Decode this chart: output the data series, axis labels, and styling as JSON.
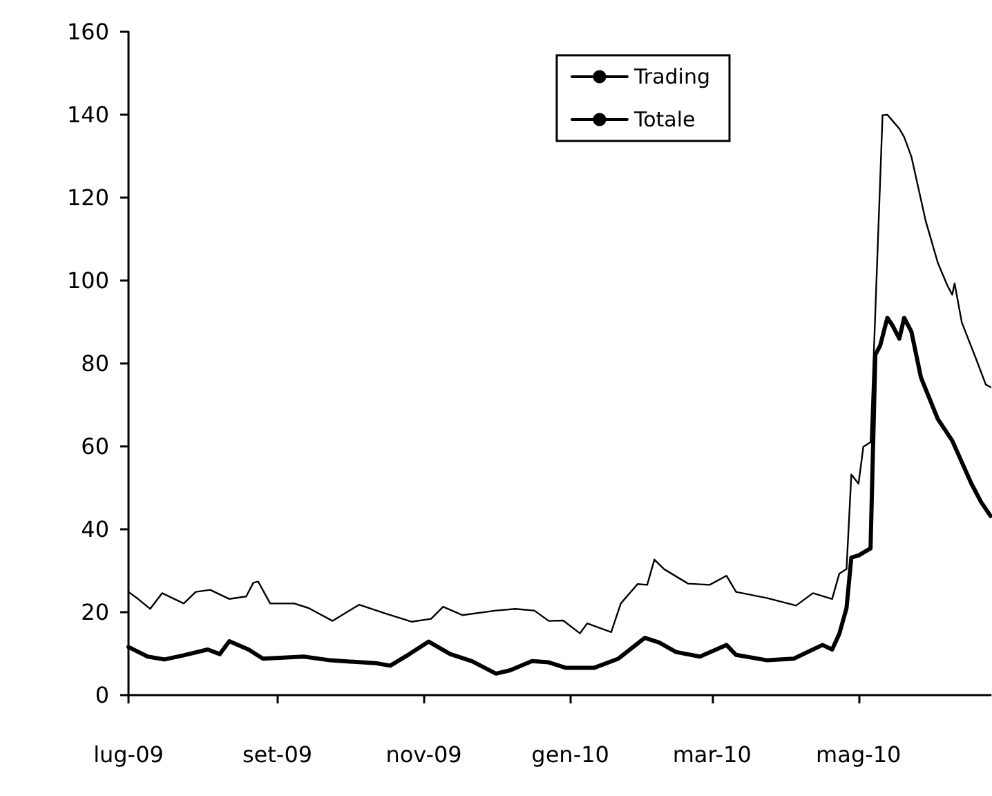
{
  "chart_data": {
    "type": "line",
    "legend": "top right",
    "grid": false,
    "marker": "none",
    "line_style": "solid",
    "xlim": [
      "2009-07-01",
      "2010-06-25"
    ],
    "xticks": [
      {
        "value": "2009-07-01",
        "label": "lug-09"
      },
      {
        "value": "2009-09-01",
        "label": "set-09"
      },
      {
        "value": "2009-11-01",
        "label": "nov-09"
      },
      {
        "value": "2010-01-01",
        "label": "gen-10"
      },
      {
        "value": "2010-03-01",
        "label": "mar-10"
      },
      {
        "value": "2010-05-01",
        "label": "mag-10"
      }
    ],
    "ylim": [
      0,
      160
    ],
    "yticks": [
      0,
      20,
      40,
      60,
      80,
      100,
      120,
      140,
      160
    ],
    "series": [
      {
        "name": "Trading",
        "color": "#000000",
        "x": [
          "2009-07-01",
          "2009-07-09",
          "2009-07-16",
          "2009-07-24",
          "2009-08-03",
          "2009-08-08",
          "2009-08-12",
          "2009-08-20",
          "2009-08-26",
          "2009-09-12",
          "2009-09-23",
          "2009-10-12",
          "2009-10-18",
          "2009-10-26",
          "2009-11-03",
          "2009-11-12",
          "2009-11-21",
          "2009-12-01",
          "2009-12-07",
          "2009-12-16",
          "2009-12-23",
          "2009-12-30",
          "2010-01-11",
          "2010-01-21",
          "2010-02-01",
          "2010-02-07",
          "2010-02-14",
          "2010-02-24",
          "2010-03-07",
          "2010-03-11",
          "2010-03-24",
          "2010-04-04",
          "2010-04-16",
          "2010-04-20",
          "2010-04-23",
          "2010-04-26",
          "2010-04-28",
          "2010-05-01",
          "2010-05-06",
          "2010-05-08",
          "2010-05-10",
          "2010-05-13",
          "2010-05-15",
          "2010-05-18",
          "2010-05-20",
          "2010-05-23",
          "2010-05-27",
          "2010-06-03",
          "2010-06-09",
          "2010-06-17",
          "2010-06-21",
          "2010-06-25"
        ],
        "values": [
          11.6,
          9.3,
          8.6,
          9.6,
          11,
          9.9,
          13,
          11,
          8.8,
          9.3,
          8.4,
          7.7,
          7.1,
          9.9,
          12.9,
          9.9,
          8.2,
          5.2,
          6,
          8.2,
          7.9,
          6.6,
          6.6,
          8.8,
          13.8,
          12.7,
          10.4,
          9.3,
          12.1,
          9.7,
          8.4,
          8.8,
          12.1,
          11,
          14.8,
          21,
          33.2,
          33.7,
          35.4,
          82.1,
          84.3,
          91,
          89.3,
          86,
          91,
          87.7,
          76.6,
          66.6,
          61.4,
          51,
          46.6,
          43.2
        ]
      },
      {
        "name": "Totale",
        "color": "#000000",
        "x": [
          "2009-07-01",
          "2009-07-05",
          "2009-07-10",
          "2009-07-15",
          "2009-07-24",
          "2009-07-29",
          "2009-08-04",
          "2009-08-12",
          "2009-08-19",
          "2009-08-22",
          "2009-08-24",
          "2009-08-29",
          "2009-09-08",
          "2009-09-14",
          "2009-09-24",
          "2009-10-05",
          "2009-10-16",
          "2009-10-27",
          "2009-11-04",
          "2009-11-09",
          "2009-11-17",
          "2009-12-01",
          "2009-12-09",
          "2009-12-17",
          "2009-12-23",
          "2009-12-29",
          "2010-01-05",
          "2010-01-08",
          "2010-01-18",
          "2010-01-22",
          "2010-01-29",
          "2010-02-02",
          "2010-02-05",
          "2010-02-09",
          "2010-02-19",
          "2010-02-28",
          "2010-03-07",
          "2010-03-11",
          "2010-03-24",
          "2010-04-05",
          "2010-04-12",
          "2010-04-20",
          "2010-04-23",
          "2010-04-26",
          "2010-04-28",
          "2010-05-01",
          "2010-05-03",
          "2010-05-06",
          "2010-05-11",
          "2010-05-13",
          "2010-05-18",
          "2010-05-20",
          "2010-05-23",
          "2010-05-29",
          "2010-06-03",
          "2010-06-07",
          "2010-06-09",
          "2010-06-10",
          "2010-06-13",
          "2010-06-19",
          "2010-06-23",
          "2010-06-25"
        ],
        "values": [
          24.9,
          23.2,
          20.8,
          24.6,
          22.1,
          24.9,
          25.4,
          23.2,
          23.8,
          27.1,
          27.4,
          22.1,
          22.1,
          21,
          17.9,
          21.8,
          19.7,
          17.7,
          18.4,
          21.3,
          19.3,
          20.4,
          20.8,
          20.4,
          17.9,
          18,
          14.9,
          17.3,
          15.2,
          22.1,
          26.8,
          26.6,
          32.7,
          30.4,
          26.9,
          26.6,
          28.8,
          24.9,
          23.4,
          21.6,
          24.6,
          23.2,
          29.3,
          30.4,
          53.2,
          51,
          59.9,
          61,
          139.9,
          140,
          136.6,
          134.6,
          129.9,
          114.3,
          104.3,
          98.8,
          96.6,
          99.3,
          89.9,
          81,
          74.9,
          74.3
        ]
      }
    ]
  }
}
